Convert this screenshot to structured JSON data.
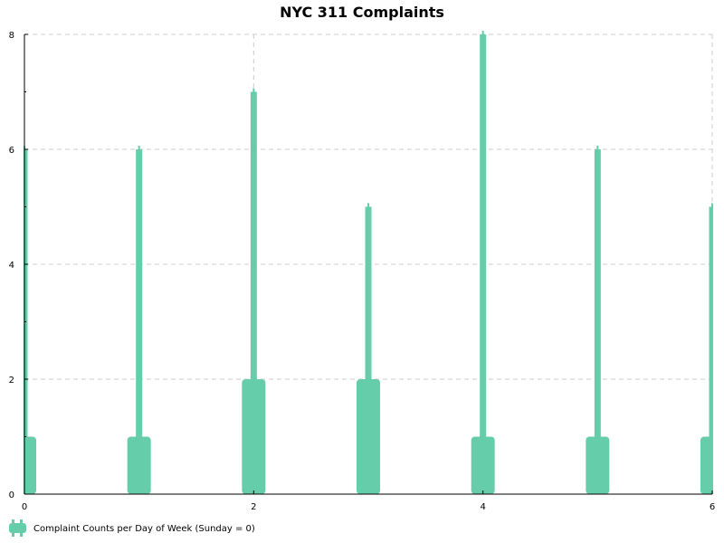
{
  "chart_data": {
    "type": "bar",
    "title": "NYC 311 Complaints",
    "xlabel": "",
    "ylabel": "",
    "xlim": [
      0,
      6
    ],
    "ylim": [
      0,
      8
    ],
    "x_ticks": [
      0,
      2,
      4,
      6
    ],
    "y_ticks": [
      0,
      2,
      4,
      6,
      8
    ],
    "grid": true,
    "legend_position": "bottom-left",
    "bar_color": "#66cdaa",
    "series": [
      {
        "name": "Complaint Counts per Day of Week (Sunday = 0)",
        "x": [
          0,
          1,
          2,
          3,
          4,
          5,
          6
        ],
        "peak_values": [
          6,
          6,
          7,
          5,
          8,
          6,
          5
        ],
        "base_values": [
          1,
          1,
          2,
          2,
          1,
          1,
          1
        ]
      }
    ]
  }
}
